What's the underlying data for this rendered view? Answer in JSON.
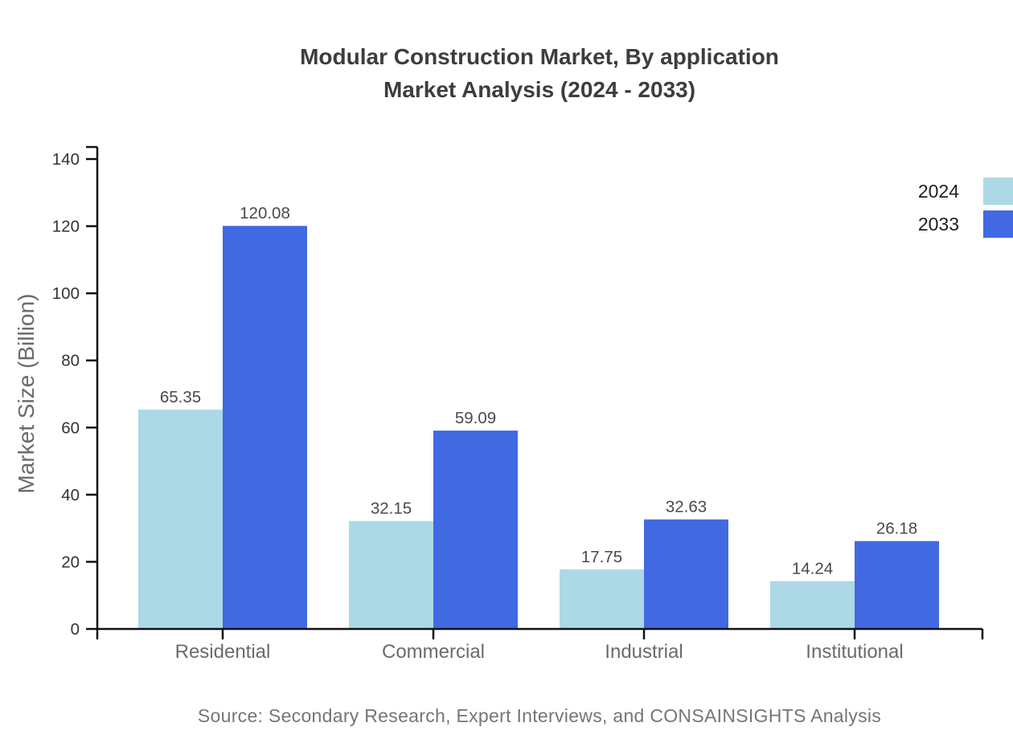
{
  "title": {
    "line1": "Modular Construction Market, By application",
    "line2": "Market Analysis (2024 - 2033)"
  },
  "chart_data": {
    "type": "bar",
    "categories": [
      "Residential",
      "Commercial",
      "Industrial",
      "Institutional"
    ],
    "series": [
      {
        "name": "2024",
        "color": "#ADD8E6",
        "values": [
          65.35,
          32.15,
          17.75,
          14.24
        ]
      },
      {
        "name": "2033",
        "color": "#4169E1",
        "values": [
          120.08,
          59.09,
          32.63,
          26.18
        ]
      }
    ],
    "value_labels": [
      "65.35",
      "120.08",
      "32.15",
      "59.09",
      "17.75",
      "32.63",
      "14.24",
      "26.18"
    ],
    "title": "Modular Construction Market, By application Market Analysis (2024 - 2033)",
    "xlabel": "",
    "ylabel": "Market Size (Billion)",
    "ylim": [
      0,
      140
    ],
    "yticks": [
      0,
      20,
      40,
      60,
      80,
      100,
      120,
      140
    ],
    "grid": false,
    "legend_position": "top-right"
  },
  "legend": {
    "items": [
      {
        "label": "2024",
        "color": "#ADD8E6"
      },
      {
        "label": "2033",
        "color": "#4169E1"
      }
    ]
  },
  "source": "Source: Secondary Research, Expert Interviews, and CONSAINSIGHTS Analysis",
  "colors": {
    "axis": "#111111",
    "tick_label": "#333333",
    "category_label": "#6b6b6b",
    "value_label": "#4a4a4a",
    "title": "#3d3d3d",
    "source": "#757575",
    "background": "#ffffff"
  }
}
